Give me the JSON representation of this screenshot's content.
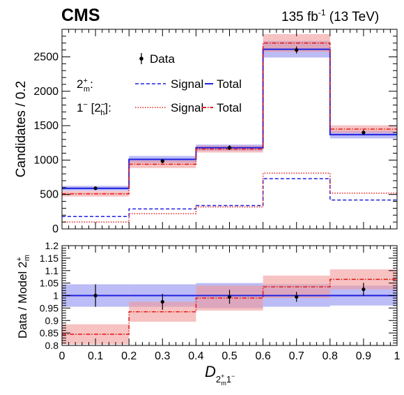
{
  "header": {
    "experiment": "CMS",
    "lumi_value": "135 fb",
    "lumi_exp": "-1",
    "lumi_energy": " (13 TeV)"
  },
  "legend": {
    "data_label": "Data",
    "row1_model_main": "2",
    "row1_model_sup": "+",
    "row1_model_sub": "m",
    "row1_colon": ":",
    "row2_model_main": "1",
    "row2_model_sup": "−",
    "row2_bracket_open": " [2",
    "row2_bracket_sup": "−",
    "row2_bracket_sub": "h",
    "row2_bracket_close": "]:",
    "signal_label": "Signal",
    "total_label": "Total"
  },
  "colors": {
    "model_a": "#1f1fe0",
    "model_a_band": "#8f8ff0",
    "model_b": "#e02020",
    "model_b_band": "#f29a9a",
    "data": "#000000"
  },
  "chart_data": [
    {
      "type": "bar",
      "panel": "main",
      "ylabel": "Candidates / 0.2",
      "xlim": [
        0,
        1
      ],
      "ylim": [
        0,
        2900
      ],
      "yticks": [
        "0",
        "500",
        "1000",
        "1500",
        "2000",
        "2500"
      ],
      "bin_edges": [
        0,
        0.2,
        0.4,
        0.6,
        0.8,
        1.0
      ],
      "series": [
        {
          "name": "Signal",
          "model": "2m+",
          "style": "dashed",
          "values": [
            180,
            290,
            340,
            730,
            420
          ]
        },
        {
          "name": "Total",
          "model": "2m+",
          "style": "solid",
          "values": [
            590,
            1010,
            1180,
            2610,
            1370
          ],
          "band_halfwidth": [
            35,
            50,
            45,
            120,
            55
          ]
        },
        {
          "name": "Signal",
          "model": "1- [2h-]",
          "style": "dotted",
          "values": [
            100,
            220,
            320,
            810,
            520
          ]
        },
        {
          "name": "Total",
          "model": "1- [2h-]",
          "style": "dashdot",
          "values": [
            510,
            940,
            1160,
            2700,
            1450
          ],
          "band_halfwidth": [
            40,
            55,
            50,
            130,
            55
          ]
        },
        {
          "name": "Data",
          "x": [
            0.1,
            0.3,
            0.5,
            0.7,
            0.9
          ],
          "values": [
            590,
            985,
            1180,
            2600,
            1400
          ],
          "errors": [
            24,
            31,
            34,
            51,
            37
          ]
        }
      ]
    },
    {
      "type": "bar",
      "panel": "ratio",
      "xlabel_main": "D",
      "xlabel_sub_a": "2",
      "xlabel_sub_sup": "+",
      "xlabel_sub_sub": "m",
      "xlabel_sub_b": "1",
      "xlabel_sub_sup2": "−",
      "ylabel": "Data / Model 2",
      "ylabel_sup": "+",
      "ylabel_sub": "m",
      "xlim": [
        0,
        1
      ],
      "ylim": [
        0.8,
        1.2
      ],
      "yticks": [
        "0.8",
        "0.85",
        "0.9",
        "0.95",
        "1",
        "1.05",
        "1.1",
        "1.15",
        "1.2"
      ],
      "xticks": [
        "0",
        "0.1",
        "0.2",
        "0.3",
        "0.4",
        "0.5",
        "0.6",
        "0.7",
        "0.8",
        "0.9",
        "1"
      ],
      "bin_edges": [
        0,
        0.2,
        0.4,
        0.6,
        0.8,
        1.0
      ],
      "series": [
        {
          "name": "Total",
          "model": "2m+",
          "values": [
            1,
            1,
            1,
            1,
            1
          ],
          "band_halfwidth": [
            0.045,
            0.045,
            0.05,
            0.045,
            0.04
          ]
        },
        {
          "name": "Total",
          "model": "1- [2h-]",
          "values": [
            0.845,
            0.935,
            0.99,
            1.035,
            1.065
          ],
          "band_halfwidth": [
            0.04,
            0.04,
            0.05,
            0.045,
            0.04
          ]
        },
        {
          "name": "Data",
          "x": [
            0.1,
            0.3,
            0.5,
            0.7,
            0.9
          ],
          "values": [
            1.0,
            0.975,
            0.995,
            0.995,
            1.025
          ],
          "errors": [
            0.045,
            0.032,
            0.028,
            0.02,
            0.026
          ]
        }
      ]
    }
  ]
}
